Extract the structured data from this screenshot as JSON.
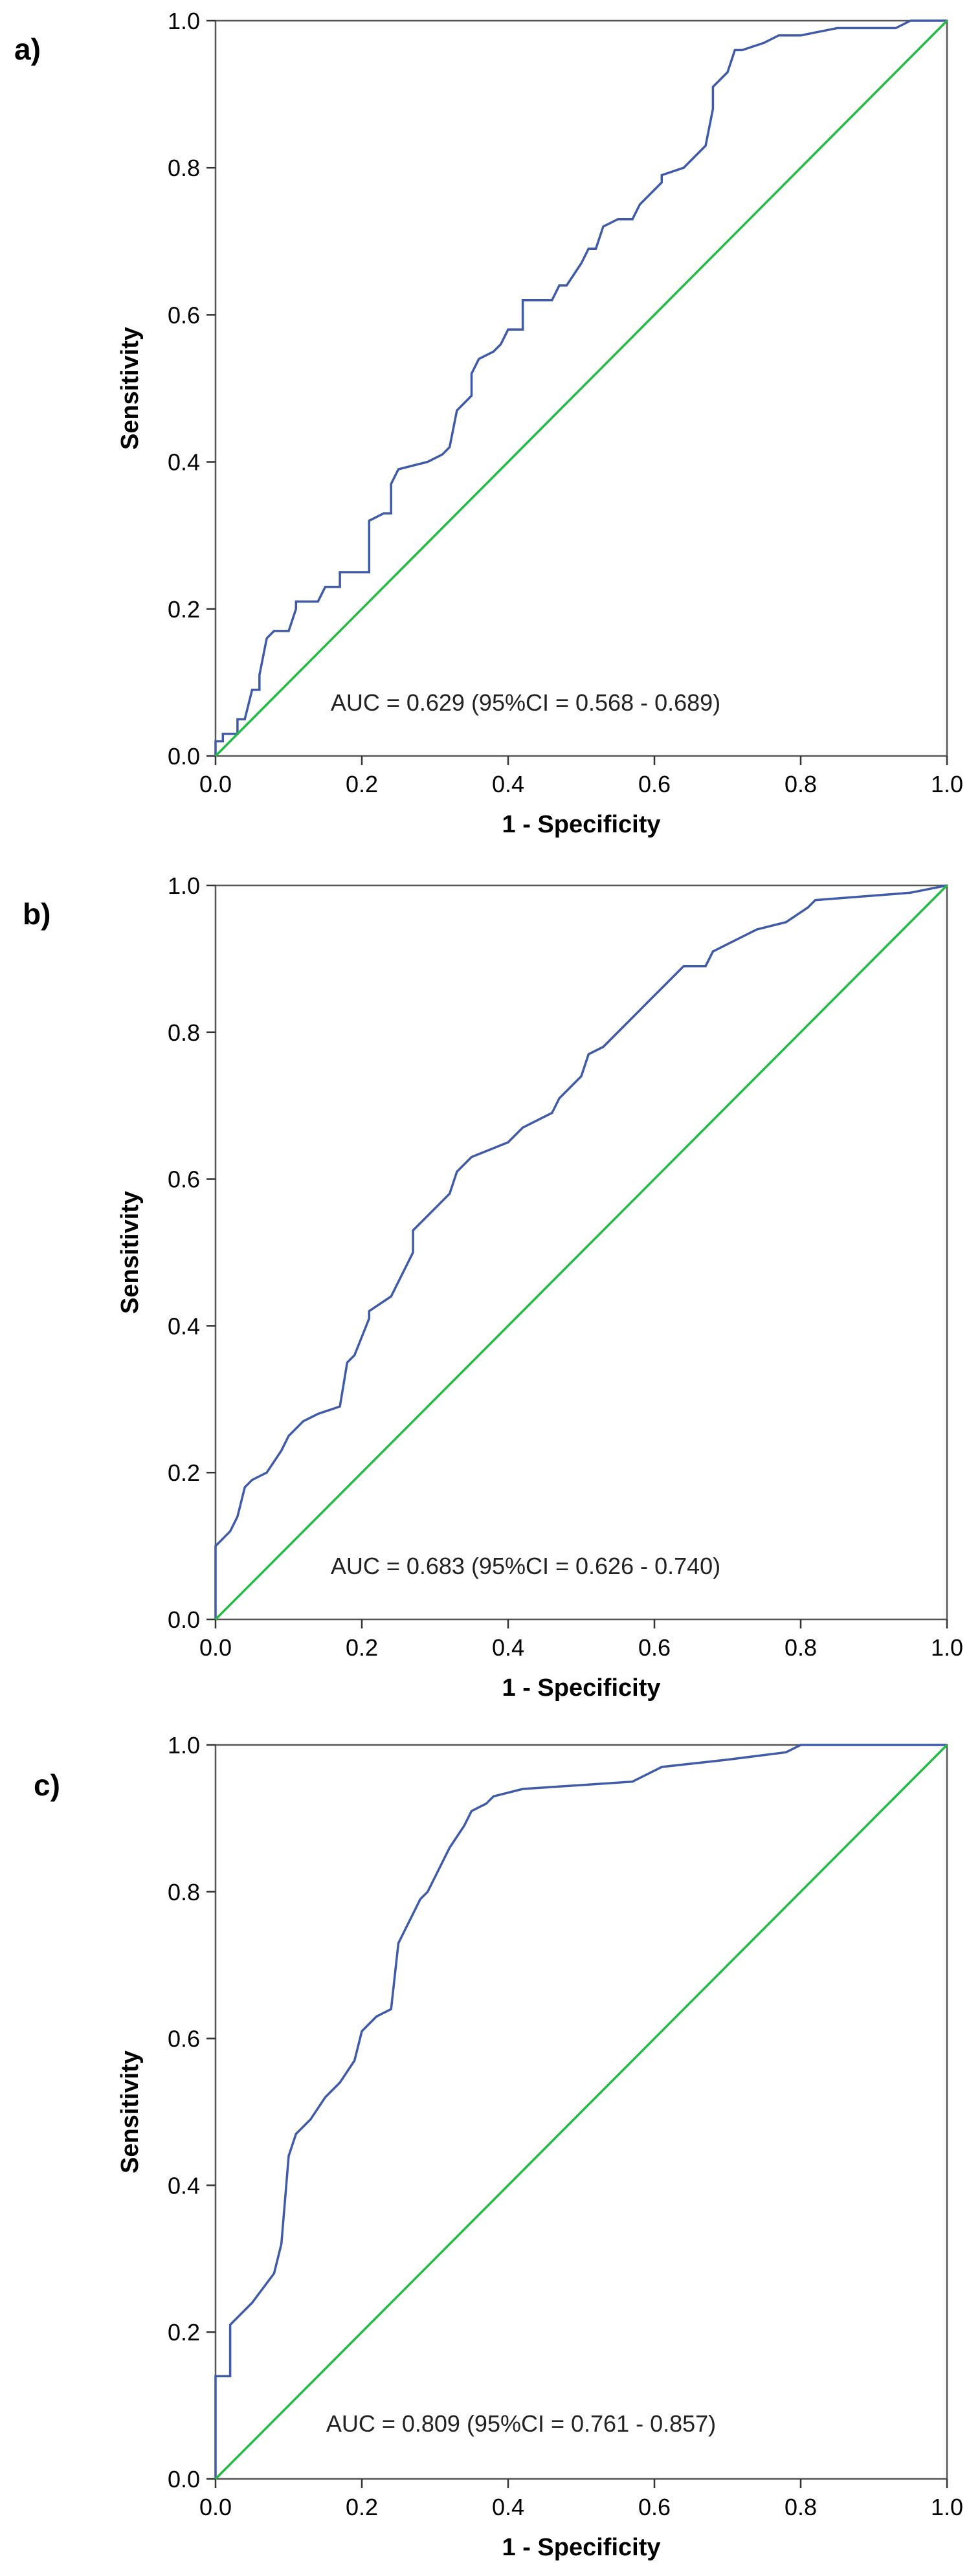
{
  "chart_data": [
    {
      "type": "line",
      "panel_label": "a)",
      "xlabel": "1 - Specificity",
      "ylabel": "Sensitivity",
      "xlim": [
        0,
        1
      ],
      "ylim": [
        0,
        1
      ],
      "x_ticks": [
        "0.0",
        "0.2",
        "0.4",
        "0.6",
        "0.8",
        "1.0"
      ],
      "y_ticks": [
        "0.0",
        "0.2",
        "0.4",
        "0.6",
        "0.8",
        "1.0"
      ],
      "annotation": "AUC = 0.629 (95%CI = 0.568 - 0.689)",
      "grid": false,
      "colors": {
        "roc": "#3f5aa8",
        "reference": "#22bb44"
      },
      "series": [
        {
          "role": "roc",
          "x": [
            0,
            0,
            0.01,
            0.01,
            0.03,
            0.03,
            0.04,
            0.05,
            0.06,
            0.06,
            0.07,
            0.08,
            0.1,
            0.11,
            0.11,
            0.14,
            0.15,
            0.17,
            0.17,
            0.21,
            0.21,
            0.23,
            0.24,
            0.24,
            0.25,
            0.25,
            0.29,
            0.31,
            0.32,
            0.33,
            0.35,
            0.35,
            0.36,
            0.38,
            0.39,
            0.4,
            0.42,
            0.42,
            0.46,
            0.47,
            0.48,
            0.5,
            0.51,
            0.52,
            0.53,
            0.55,
            0.57,
            0.58,
            0.61,
            0.61,
            0.64,
            0.67,
            0.68,
            0.68,
            0.69,
            0.7,
            0.71,
            0.72,
            0.75,
            0.77,
            0.8,
            0.85,
            0.93,
            0.95,
            1.0
          ],
          "y": [
            0,
            0.02,
            0.02,
            0.03,
            0.03,
            0.05,
            0.05,
            0.09,
            0.09,
            0.11,
            0.16,
            0.17,
            0.17,
            0.2,
            0.21,
            0.21,
            0.23,
            0.23,
            0.25,
            0.25,
            0.32,
            0.33,
            0.33,
            0.37,
            0.39,
            0.39,
            0.4,
            0.41,
            0.42,
            0.47,
            0.49,
            0.52,
            0.54,
            0.55,
            0.56,
            0.58,
            0.58,
            0.62,
            0.62,
            0.64,
            0.64,
            0.67,
            0.69,
            0.69,
            0.72,
            0.73,
            0.73,
            0.75,
            0.78,
            0.79,
            0.8,
            0.83,
            0.88,
            0.91,
            0.92,
            0.93,
            0.96,
            0.96,
            0.97,
            0.98,
            0.98,
            0.99,
            0.99,
            1.0,
            1.0
          ]
        },
        {
          "role": "reference",
          "x": [
            0,
            1
          ],
          "y": [
            0,
            1
          ]
        }
      ]
    },
    {
      "type": "line",
      "panel_label": "b)",
      "xlabel": "1 - Specificity",
      "ylabel": "Sensitivity",
      "xlim": [
        0,
        1
      ],
      "ylim": [
        0,
        1
      ],
      "x_ticks": [
        "0.0",
        "0.2",
        "0.4",
        "0.6",
        "0.8",
        "1.0"
      ],
      "y_ticks": [
        "0.0",
        "0.2",
        "0.4",
        "0.6",
        "0.8",
        "1.0"
      ],
      "annotation": "AUC = 0.683 (95%CI = 0.626 - 0.740)",
      "grid": false,
      "colors": {
        "roc": "#3f5aa8",
        "reference": "#22bb44"
      },
      "series": [
        {
          "role": "roc",
          "x": [
            0,
            0,
            0.01,
            0.02,
            0.03,
            0.04,
            0.05,
            0.07,
            0.09,
            0.1,
            0.12,
            0.14,
            0.17,
            0.18,
            0.19,
            0.21,
            0.21,
            0.24,
            0.25,
            0.27,
            0.27,
            0.32,
            0.33,
            0.35,
            0.4,
            0.42,
            0.46,
            0.47,
            0.5,
            0.51,
            0.53,
            0.56,
            0.58,
            0.59,
            0.63,
            0.64,
            0.67,
            0.68,
            0.7,
            0.74,
            0.78,
            0.81,
            0.82,
            0.95,
            1.0
          ],
          "y": [
            0,
            0.1,
            0.11,
            0.12,
            0.14,
            0.18,
            0.19,
            0.2,
            0.23,
            0.25,
            0.27,
            0.28,
            0.29,
            0.35,
            0.36,
            0.41,
            0.42,
            0.44,
            0.46,
            0.5,
            0.53,
            0.58,
            0.61,
            0.63,
            0.65,
            0.67,
            0.69,
            0.71,
            0.74,
            0.77,
            0.78,
            0.81,
            0.83,
            0.84,
            0.88,
            0.89,
            0.89,
            0.91,
            0.92,
            0.94,
            0.95,
            0.97,
            0.98,
            0.99,
            1.0
          ]
        },
        {
          "role": "reference",
          "x": [
            0,
            1
          ],
          "y": [
            0,
            1
          ]
        }
      ]
    },
    {
      "type": "line",
      "panel_label": "c)",
      "xlabel": "1 - Specificity",
      "ylabel": "Sensitivity",
      "xlim": [
        0,
        1
      ],
      "ylim": [
        0,
        1
      ],
      "x_ticks": [
        "0.0",
        "0.2",
        "0.4",
        "0.6",
        "0.8",
        "1.0"
      ],
      "y_ticks": [
        "0.0",
        "0.2",
        "0.4",
        "0.6",
        "0.8",
        "1.0"
      ],
      "annotation": "AUC = 0.809 (95%CI = 0.761 - 0.857)",
      "grid": false,
      "colors": {
        "roc": "#3f5aa8",
        "reference": "#22bb44"
      },
      "series": [
        {
          "role": "roc",
          "x": [
            0,
            0,
            0.02,
            0.02,
            0.03,
            0.05,
            0.08,
            0.09,
            0.1,
            0.11,
            0.13,
            0.15,
            0.17,
            0.19,
            0.2,
            0.22,
            0.24,
            0.25,
            0.26,
            0.28,
            0.29,
            0.3,
            0.32,
            0.34,
            0.35,
            0.37,
            0.38,
            0.42,
            0.57,
            0.61,
            0.7,
            0.78,
            0.8,
            1.0
          ],
          "y": [
            0,
            0.14,
            0.14,
            0.21,
            0.22,
            0.24,
            0.28,
            0.32,
            0.44,
            0.47,
            0.49,
            0.52,
            0.54,
            0.57,
            0.61,
            0.63,
            0.64,
            0.73,
            0.75,
            0.79,
            0.8,
            0.82,
            0.86,
            0.89,
            0.91,
            0.92,
            0.93,
            0.94,
            0.95,
            0.97,
            0.98,
            0.99,
            1.0,
            1.0
          ]
        },
        {
          "role": "reference",
          "x": [
            0,
            1
          ],
          "y": [
            0,
            1
          ]
        }
      ]
    }
  ]
}
